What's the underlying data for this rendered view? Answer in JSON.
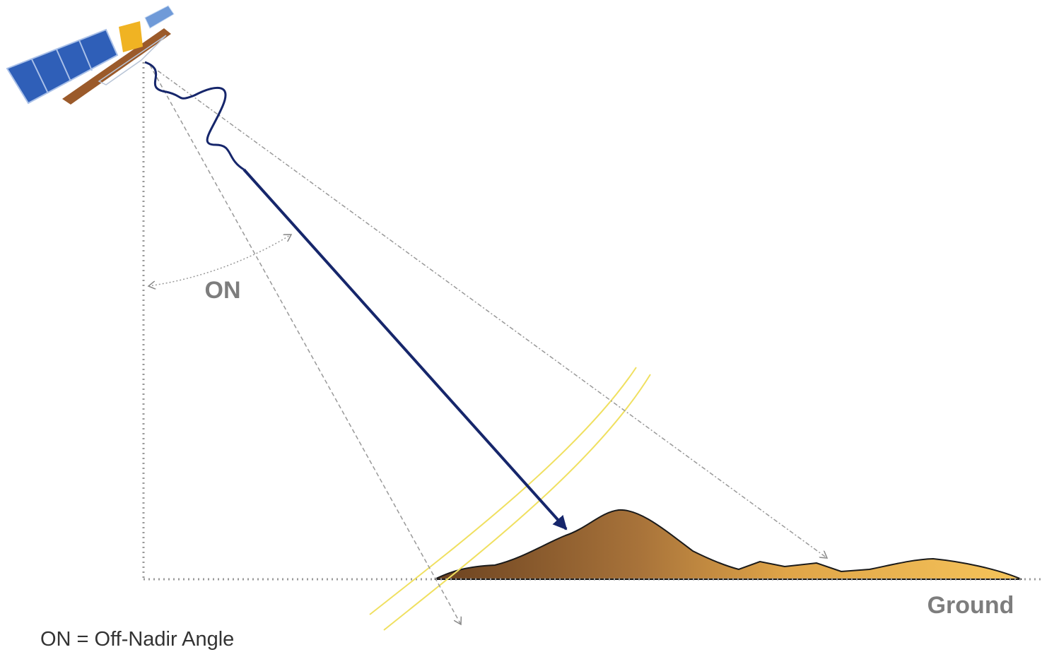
{
  "labels": {
    "angle": "ON",
    "ground": "Ground",
    "legend": "ON = Off-Nadir Angle"
  }
}
